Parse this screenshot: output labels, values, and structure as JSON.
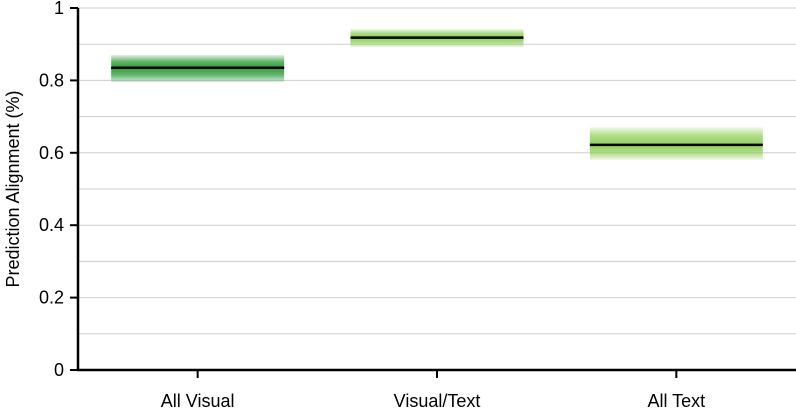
{
  "chart_data": {
    "type": "box",
    "title": "",
    "xlabel": "",
    "ylabel": "Prediction Alignment (%)",
    "ylim": [
      0,
      1
    ],
    "y_ticks": [
      0,
      0.2,
      0.4,
      0.6,
      0.8,
      1
    ],
    "y_tick_labels": [
      "0",
      "0.2",
      "0.4",
      "0.6",
      "0.8",
      "1"
    ],
    "grid": "horizontal",
    "categories": [
      "All Visual",
      "Visual/Text",
      "All Text"
    ],
    "boxes": [
      {
        "category": "All Visual",
        "median": 0.835,
        "low": 0.795,
        "high": 0.87,
        "color": "#2e9e3c"
      },
      {
        "category": "Visual/Text",
        "median": 0.918,
        "low": 0.892,
        "high": 0.942,
        "color": "#8fd05a"
      },
      {
        "category": "All Text",
        "median": 0.622,
        "low": 0.58,
        "high": 0.67,
        "color": "#92d05c"
      }
    ]
  }
}
